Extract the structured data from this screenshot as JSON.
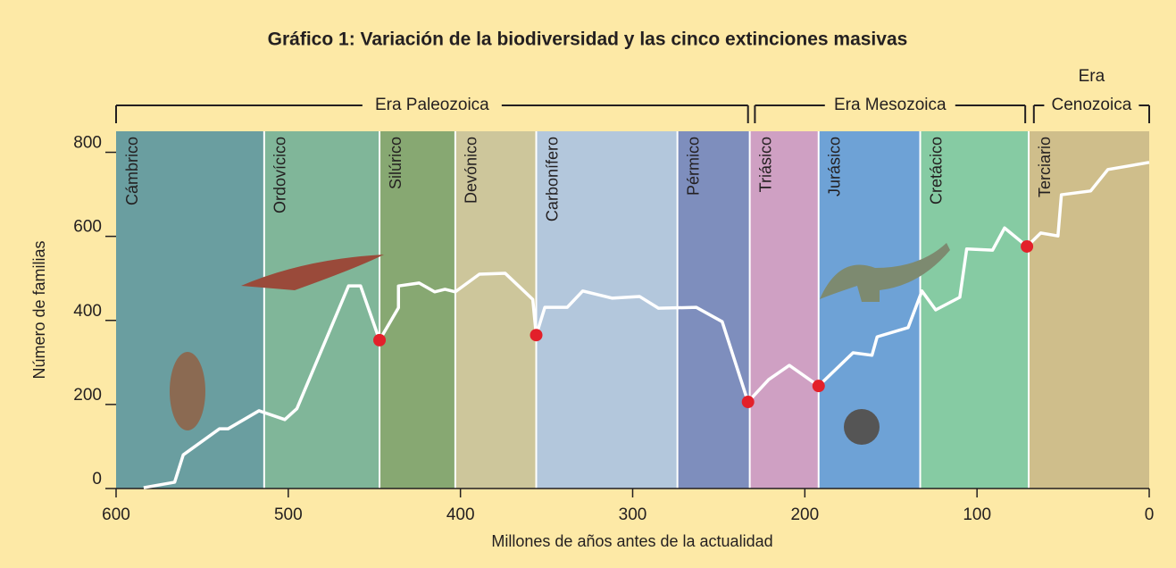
{
  "chart_data": {
    "type": "line",
    "title": "Gráfico 1: Variación de la biodiversidad y las cinco extinciones masivas",
    "x_label": "Millones de años antes de la actualidad",
    "y_label": "Número de familias",
    "xlim": [
      600,
      0
    ],
    "ylim": [
      0,
      850
    ],
    "xticks": [
      600,
      500,
      400,
      300,
      200,
      100,
      0
    ],
    "yticks": [
      0,
      200,
      400,
      600,
      800
    ],
    "line_color": "#ffffff",
    "x": [
      584,
      566,
      561,
      540,
      535,
      517,
      502,
      495,
      465,
      458,
      447,
      436,
      436,
      424,
      415,
      409,
      403,
      389,
      374,
      358,
      356,
      351,
      338,
      329,
      312,
      296,
      285,
      263,
      248,
      233,
      221,
      209,
      192,
      172,
      161,
      158,
      140,
      132,
      124,
      110,
      106,
      91,
      84,
      71,
      63,
      53,
      51,
      34,
      24,
      0
    ],
    "values": [
      2,
      15,
      80,
      142,
      142,
      185,
      164,
      190,
      482,
      482,
      353,
      430,
      482,
      489,
      468,
      474,
      468,
      510,
      512,
      450,
      365,
      431,
      431,
      470,
      453,
      457,
      429,
      431,
      397,
      206,
      259,
      293,
      244,
      323,
      317,
      361,
      383,
      470,
      425,
      455,
      570,
      567,
      620,
      576,
      608,
      601,
      699,
      708,
      759,
      776
    ],
    "extinctions": {
      "color": "#e3202a",
      "x": [
        447,
        356,
        233,
        192,
        71
      ],
      "values": [
        353,
        365,
        206,
        244,
        576
      ]
    },
    "periods": [
      {
        "name": "Cámbrico",
        "start": 600,
        "end": 514,
        "color": "#6a9ea0"
      },
      {
        "name": "Ordovícico",
        "start": 514,
        "end": 447,
        "color": "#80b699"
      },
      {
        "name": "Silúrico",
        "start": 447,
        "end": 403,
        "color": "#87a872"
      },
      {
        "name": "Devónico",
        "start": 403,
        "end": 356,
        "color": "#cdc69b"
      },
      {
        "name": "Carbonífero",
        "start": 356,
        "end": 274,
        "color": "#b3c7dc"
      },
      {
        "name": "Pérmico",
        "start": 274,
        "end": 232,
        "color": "#7e8ebd"
      },
      {
        "name": "Triásico",
        "start": 232,
        "end": 192,
        "color": "#cfa0c3"
      },
      {
        "name": "Jurásico",
        "start": 192,
        "end": 133,
        "color": "#6ea2d6"
      },
      {
        "name": "Cretácico",
        "start": 133,
        "end": 70,
        "color": "#86cba3"
      },
      {
        "name": "Terciario",
        "start": 70,
        "end": 0,
        "color": "#cfbe8b"
      }
    ],
    "eras": [
      {
        "label": [
          "Era Paleozoica"
        ],
        "start": 600,
        "end": 233
      },
      {
        "label": [
          "Era Mesozoica"
        ],
        "start": 229,
        "end": 72
      },
      {
        "label": [
          "Era",
          "Cenozoica"
        ],
        "start": 67,
        "end": 0
      }
    ]
  }
}
